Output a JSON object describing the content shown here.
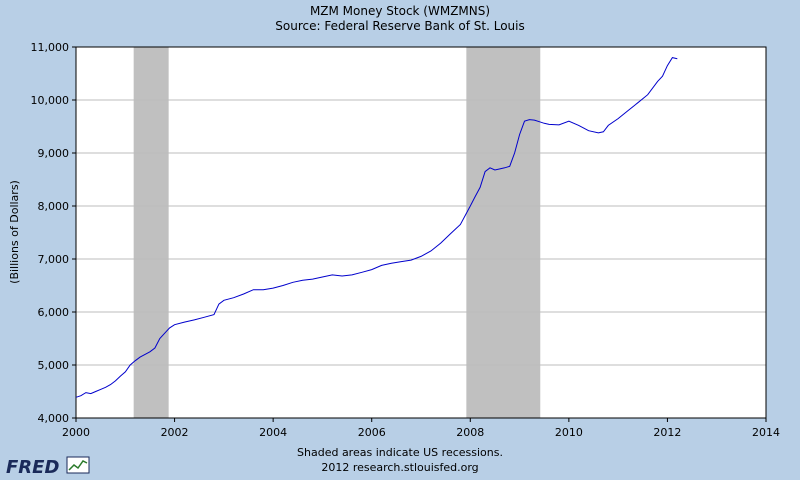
{
  "chart_data": {
    "type": "line",
    "title": "MZM Money Stock (WMZMNS)",
    "subtitle": "Source: Federal Reserve Bank of St. Louis",
    "xlabel": "",
    "ylabel": "(Billions of Dollars)",
    "xlim": [
      2000,
      2014
    ],
    "ylim": [
      4000,
      11000
    ],
    "x_ticks": [
      "2000",
      "2002",
      "2004",
      "2006",
      "2008",
      "2010",
      "2012",
      "2014"
    ],
    "y_ticks": [
      "4,000",
      "5,000",
      "6,000",
      "7,000",
      "8,000",
      "9,000",
      "10,000",
      "11,000"
    ],
    "grid": true,
    "line_color": "#0000cc",
    "recession_color": "#c0c0c0",
    "recessions": [
      {
        "start": 2001.17,
        "end": 2001.88
      },
      {
        "start": 2007.92,
        "end": 2009.42
      }
    ],
    "series": [
      {
        "x": [
          2000.0,
          2000.1,
          2000.2,
          2000.3,
          2000.4,
          2000.5,
          2000.6,
          2000.7,
          2000.8,
          2000.9,
          2001.0,
          2001.1,
          2001.2,
          2001.3,
          2001.4,
          2001.5,
          2001.6,
          2001.7,
          2001.8,
          2001.9,
          2002.0,
          2002.2,
          2002.4,
          2002.6,
          2002.8,
          2002.9,
          2003.0,
          2003.2,
          2003.4,
          2003.6,
          2003.8,
          2004.0,
          2004.2,
          2004.4,
          2004.6,
          2004.8,
          2005.0,
          2005.2,
          2005.4,
          2005.6,
          2005.8,
          2006.0,
          2006.2,
          2006.4,
          2006.6,
          2006.8,
          2007.0,
          2007.2,
          2007.4,
          2007.6,
          2007.8,
          2008.0,
          2008.1,
          2008.2,
          2008.3,
          2008.4,
          2008.5,
          2008.6,
          2008.7,
          2008.8,
          2008.9,
          2009.0,
          2009.1,
          2009.2,
          2009.3,
          2009.4,
          2009.5,
          2009.6,
          2009.8,
          2010.0,
          2010.2,
          2010.4,
          2010.6,
          2010.7,
          2010.8,
          2011.0,
          2011.2,
          2011.4,
          2011.6,
          2011.8,
          2011.9,
          2012.0,
          2012.1,
          2012.2
        ],
        "y": [
          4390,
          4420,
          4480,
          4460,
          4500,
          4540,
          4580,
          4630,
          4700,
          4790,
          4870,
          5000,
          5080,
          5150,
          5200,
          5250,
          5320,
          5500,
          5600,
          5700,
          5760,
          5810,
          5850,
          5900,
          5950,
          6150,
          6220,
          6270,
          6340,
          6420,
          6420,
          6450,
          6500,
          6560,
          6600,
          6620,
          6660,
          6700,
          6680,
          6700,
          6750,
          6800,
          6880,
          6920,
          6950,
          6980,
          7050,
          7150,
          7300,
          7480,
          7650,
          8000,
          8180,
          8350,
          8650,
          8720,
          8680,
          8700,
          8720,
          8750,
          9000,
          9350,
          9600,
          9630,
          9620,
          9590,
          9560,
          9540,
          9530,
          9600,
          9520,
          9420,
          9380,
          9400,
          9520,
          9650,
          9800,
          9950,
          10100,
          10350,
          10450,
          10650,
          10800,
          10780
        ]
      }
    ]
  },
  "footer": {
    "note": "Shaded areas indicate US recessions.",
    "credit": "2012 research.stlouisfed.org"
  },
  "logo": {
    "text": "FRED"
  }
}
